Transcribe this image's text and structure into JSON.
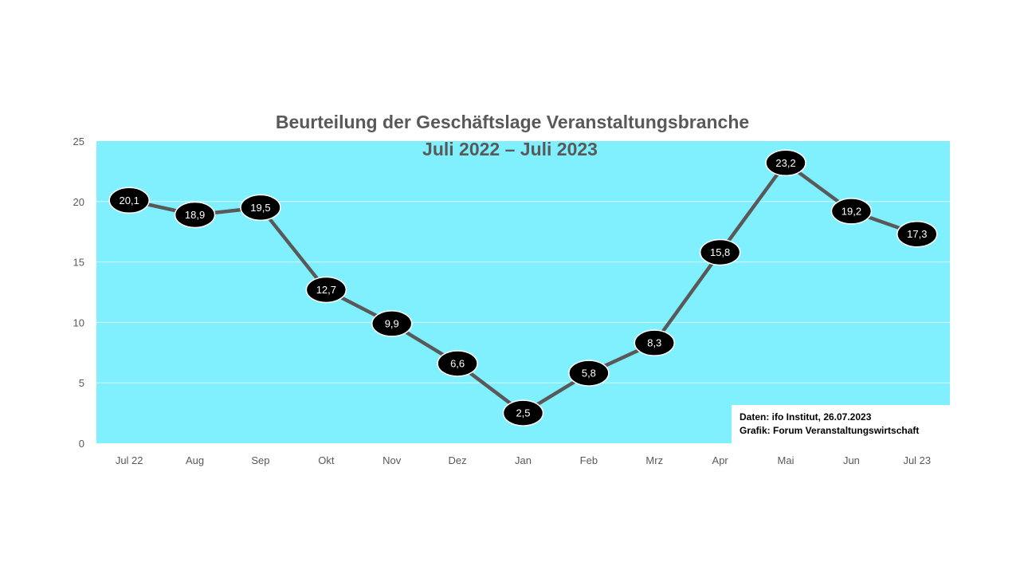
{
  "chart_data": {
    "type": "line",
    "title": "Beurteilung der Geschäftslage Veranstaltungsbranche",
    "subtitle": "Juli 2022 – Juli 2023",
    "categories": [
      "Jul 22",
      "Aug",
      "Sep",
      "Okt",
      "Nov",
      "Dez",
      "Jan",
      "Feb",
      "Mrz",
      "Apr",
      "Mai",
      "Jun",
      "Jul 23"
    ],
    "series": [
      {
        "values": [
          20.1,
          18.9,
          19.5,
          12.7,
          9.9,
          6.6,
          2.5,
          5.8,
          8.3,
          15.8,
          23.2,
          19.2,
          17.3
        ],
        "labels": [
          "20,1",
          "18,9",
          "19,5",
          "12,7",
          "9,9",
          "6,6",
          "2,5",
          "5,8",
          "8,3",
          "15,8",
          "23,2",
          "19,2",
          "17,3"
        ]
      }
    ],
    "ylim": [
      0,
      25
    ],
    "yticks": [
      0,
      5,
      10,
      15,
      20,
      25
    ],
    "grid": true,
    "colors": {
      "plot_background": "#80F0FF",
      "line": "#595959",
      "marker": "#000000",
      "gridline": "#D9F8FC"
    }
  },
  "source": {
    "line1": "Daten: ifo Institut, 26.07.2023",
    "line2": "Grafik: Forum Veranstaltungswirtschaft"
  }
}
